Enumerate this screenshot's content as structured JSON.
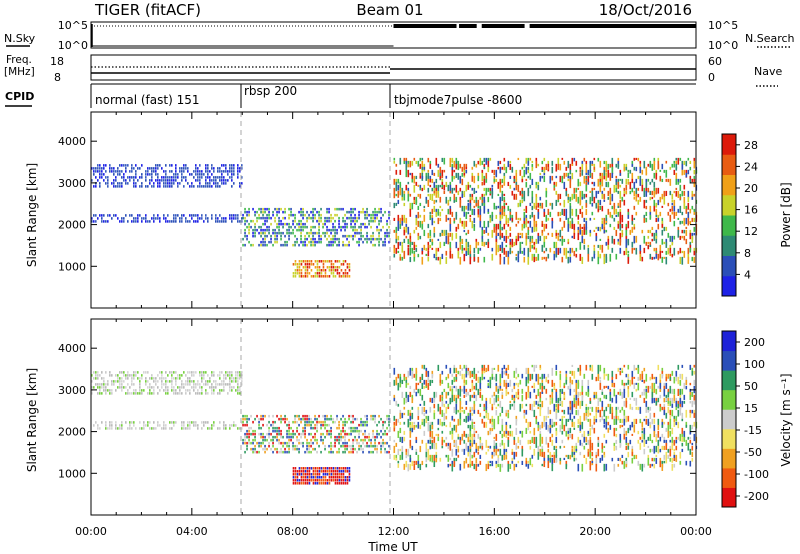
{
  "header": {
    "title_left": "TIGER (fitACF)",
    "title_center": "Beam 01",
    "title_right": "18/Oct/2016"
  },
  "top_panels": {
    "nsky_label": "N.Sky",
    "nsearch_label": "N.Search",
    "noise_ticks": [
      "10^5",
      "10^0"
    ],
    "freq_label": "Freq.",
    "freq_unit": "[MHz]",
    "freq_ticks": [
      "18",
      "8"
    ],
    "nave_label": "Nave",
    "nave_ticks": [
      "60",
      "0"
    ],
    "cpid_label": "CPID"
  },
  "modes": [
    {
      "label": "normal (fast) 151",
      "start_h": 0,
      "end_h": 6
    },
    {
      "label": "rbsp 200",
      "start_h": 6,
      "end_h": 12
    },
    {
      "label": "tbjmode7pulse -8600",
      "start_h": 12,
      "end_h": 24
    }
  ],
  "chart_data": [
    {
      "type": "heatmap",
      "title": "",
      "xlabel": "Time UT",
      "ylabel": "Slant Range [km]",
      "xlim": [
        "00:00",
        "24:00"
      ],
      "ylim": [
        0,
        4700
      ],
      "x_ticks": [
        "00:00",
        "04:00",
        "08:00",
        "12:00",
        "16:00",
        "20:00",
        "00:00"
      ],
      "y_ticks": [
        1000,
        2000,
        3000,
        4000
      ],
      "colorbar_label": "Power [dB]",
      "colorbar_ticks": [
        4,
        8,
        12,
        16,
        20,
        24,
        28
      ],
      "colorbar_range": [
        0,
        30
      ],
      "colorbar_colors": [
        "#1e22e6",
        "#2b4fb8",
        "#2e8a74",
        "#3fb84a",
        "#c8d22a",
        "#f0a018",
        "#e85c12",
        "#dc1a0a"
      ],
      "regions": [
        {
          "t_start": 0,
          "t_end": 6,
          "r_min": 2900,
          "r_max": 3450,
          "dominant": "weak"
        },
        {
          "t_start": 0,
          "t_end": 6,
          "r_min": 2100,
          "r_max": 2250,
          "dominant": "weak"
        },
        {
          "t_start": 6,
          "t_end": 11.8,
          "r_min": 1500,
          "r_max": 2400,
          "dominant": "medium"
        },
        {
          "t_start": 8,
          "t_end": 10.3,
          "r_min": 750,
          "r_max": 1150,
          "dominant": "strong"
        },
        {
          "t_start": 12,
          "t_end": 24,
          "r_min": 1200,
          "r_max": 3600,
          "dominant": "scattered"
        }
      ]
    },
    {
      "type": "heatmap",
      "title": "",
      "xlabel": "Time UT",
      "ylabel": "Slant Range [km]",
      "xlim": [
        "00:00",
        "24:00"
      ],
      "ylim": [
        0,
        4700
      ],
      "x_ticks": [
        "00:00",
        "04:00",
        "08:00",
        "12:00",
        "16:00",
        "20:00",
        "00:00"
      ],
      "y_ticks": [
        1000,
        2000,
        3000,
        4000
      ],
      "colorbar_label": "Velocity [m s⁻¹]",
      "colorbar_ticks": [
        200,
        100,
        50,
        15,
        -15,
        -50,
        -100,
        -200
      ],
      "colorbar_range": [
        -250,
        250
      ],
      "colorbar_colors": [
        "#e01010",
        "#f05a10",
        "#f0a020",
        "#f0e060",
        "#cccccc",
        "#78d040",
        "#2e9a60",
        "#2a4fb8",
        "#1e22d8"
      ],
      "regions": [
        {
          "t_start": 0,
          "t_end": 6,
          "r_min": 2900,
          "r_max": 3450,
          "dominant": "ground-scatter"
        },
        {
          "t_start": 0,
          "t_end": 6,
          "r_min": 2100,
          "r_max": 2250,
          "dominant": "ground-scatter"
        },
        {
          "t_start": 6,
          "t_end": 11.8,
          "r_min": 1500,
          "r_max": 2400,
          "dominant": "mixed"
        },
        {
          "t_start": 8,
          "t_end": 10.3,
          "r_min": 750,
          "r_max": 1150,
          "dominant": "away"
        },
        {
          "t_start": 12,
          "t_end": 24,
          "r_min": 1200,
          "r_max": 3600,
          "dominant": "scattered"
        }
      ]
    }
  ]
}
